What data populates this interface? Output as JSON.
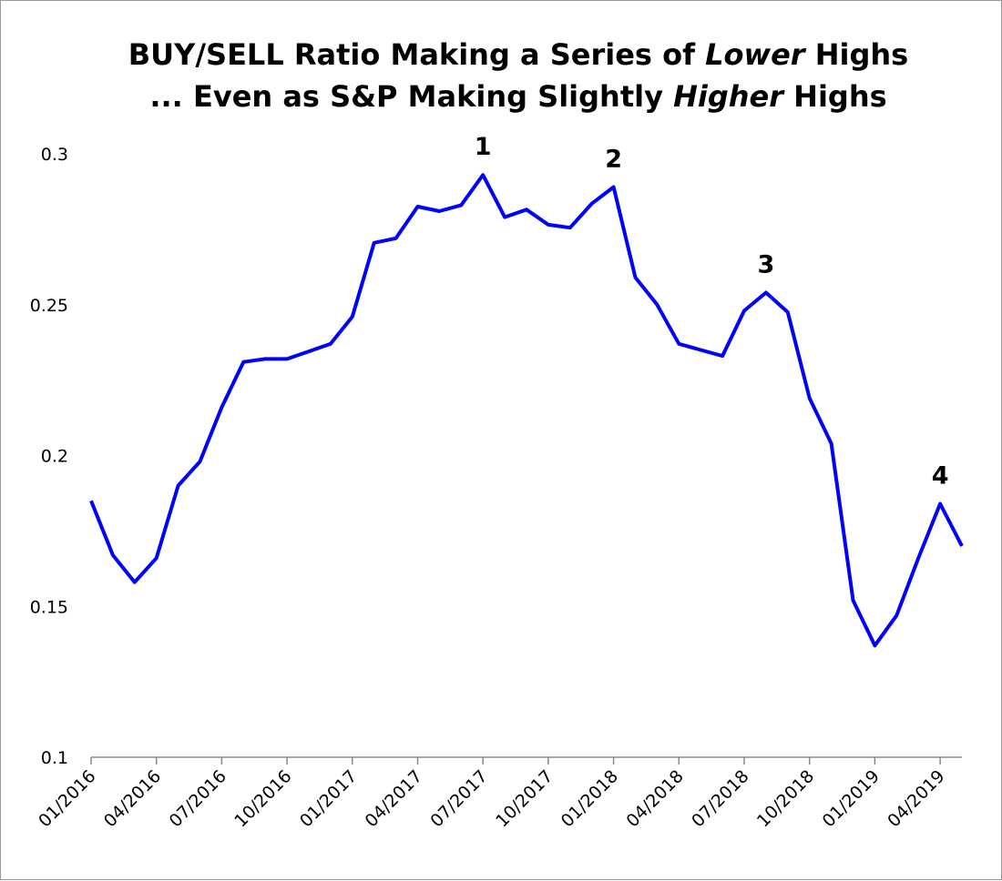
{
  "chart_data": {
    "type": "line",
    "title_line1": [
      {
        "text": "BUY/SELL Ratio Making a Series of ",
        "italic": false
      },
      {
        "text": "Lower",
        "italic": true
      },
      {
        "text": " Highs",
        "italic": false
      }
    ],
    "title_line2": [
      {
        "text": "... Even as S&P Making Slightly ",
        "italic": false
      },
      {
        "text": "Higher",
        "italic": true
      },
      {
        "text": " Highs",
        "italic": false
      }
    ],
    "xlabel": "",
    "ylabel": "",
    "ylim": [
      0.1,
      0.3
    ],
    "yticks": [
      {
        "value": 0.3,
        "label": "0.3"
      },
      {
        "value": 0.25,
        "label": "0.25"
      },
      {
        "value": 0.2,
        "label": "0.2"
      },
      {
        "value": 0.15,
        "label": "0.15"
      },
      {
        "value": 0.1,
        "label": "0.1"
      }
    ],
    "xticks": [
      "01/2016",
      "04/2016",
      "07/2016",
      "10/2016",
      "01/2017",
      "04/2017",
      "07/2017",
      "10/2017",
      "01/2018",
      "04/2018",
      "07/2018",
      "10/2018",
      "01/2019",
      "04/2019"
    ],
    "x": [
      "01/2016",
      "02/2016",
      "03/2016",
      "04/2016",
      "05/2016",
      "06/2016",
      "07/2016",
      "08/2016",
      "09/2016",
      "10/2016",
      "11/2016",
      "12/2016",
      "01/2017",
      "02/2017",
      "03/2017",
      "04/2017",
      "05/2017",
      "06/2017",
      "07/2017",
      "08/2017",
      "09/2017",
      "10/2017",
      "11/2017",
      "12/2017",
      "01/2018",
      "02/2018",
      "03/2018",
      "04/2018",
      "05/2018",
      "06/2018",
      "07/2018",
      "08/2018",
      "09/2018",
      "10/2018",
      "11/2018",
      "12/2018",
      "01/2019",
      "02/2019",
      "03/2019",
      "04/2019",
      "05/2019"
    ],
    "series": [
      {
        "color": "#0000ff",
        "values": [
          0.185,
          0.167,
          0.158,
          0.166,
          0.19,
          0.198,
          0.216,
          0.231,
          0.232,
          0.232,
          0.2345,
          0.237,
          0.246,
          0.2705,
          0.272,
          0.2825,
          0.281,
          0.283,
          0.293,
          0.279,
          0.2815,
          0.2765,
          0.2755,
          0.2835,
          0.289,
          0.259,
          0.25,
          0.237,
          0.235,
          0.233,
          0.248,
          0.254,
          0.2475,
          0.219,
          0.204,
          0.152,
          0.137,
          0.147,
          0.166,
          0.184,
          0.17
        ]
      }
    ],
    "annotations": [
      {
        "label": "1",
        "x": "07/2017",
        "y": 0.293
      },
      {
        "label": "2",
        "x": "01/2018",
        "y": 0.289
      },
      {
        "label": "3",
        "x": "08/2018",
        "y": 0.254
      },
      {
        "label": "4",
        "x": "04/2019",
        "y": 0.184
      }
    ],
    "grid": false,
    "legend": "none"
  }
}
